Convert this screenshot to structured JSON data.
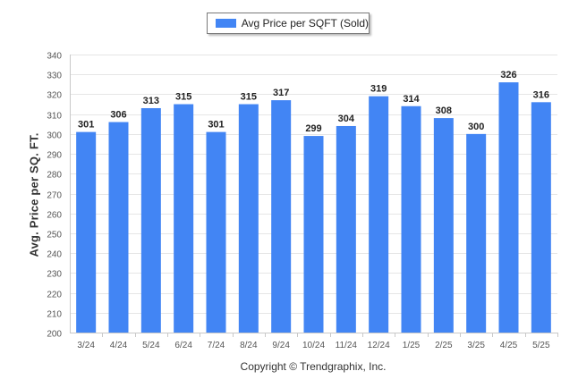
{
  "legend": {
    "label": "Avg Price per SQFT (Sold)",
    "color": "#4285f4"
  },
  "copyright": "Copyright © Trendgraphix, Inc.",
  "chart_data": {
    "type": "bar",
    "title": "",
    "xlabel": "",
    "ylabel": "Avg. Price per SQ. FT.",
    "ylim": [
      200,
      340
    ],
    "yticks": [
      200,
      210,
      220,
      230,
      240,
      250,
      260,
      270,
      280,
      290,
      300,
      310,
      320,
      330,
      340
    ],
    "grid": true,
    "legend_position": "top-center",
    "categories": [
      "3/24",
      "4/24",
      "5/24",
      "6/24",
      "7/24",
      "8/24",
      "9/24",
      "10/24",
      "11/24",
      "12/24",
      "1/25",
      "2/25",
      "3/25",
      "4/25",
      "5/25"
    ],
    "series": [
      {
        "name": "Avg Price per SQFT (Sold)",
        "values": [
          301,
          306,
          313,
          315,
          301,
          315,
          317,
          299,
          304,
          319,
          314,
          308,
          300,
          326,
          316
        ]
      }
    ]
  }
}
